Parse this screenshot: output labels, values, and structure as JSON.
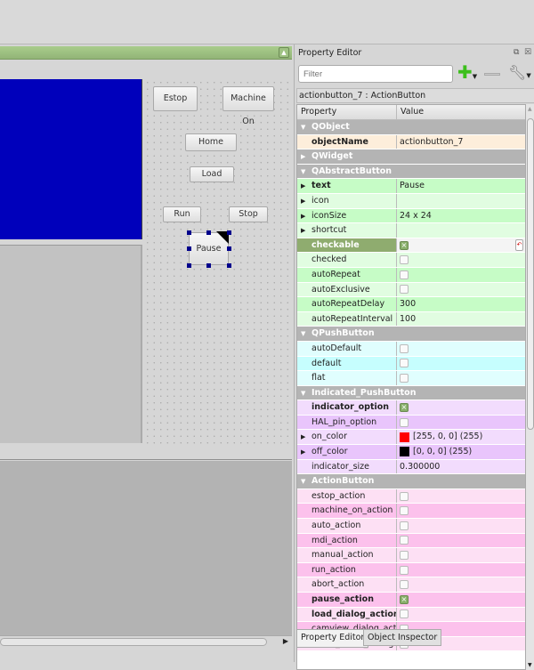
{
  "form": {
    "float_icon": "float-icon",
    "buttons": {
      "estop": "Estop",
      "machine_on": "Machine On",
      "home": "Home",
      "load": "Load",
      "run": "Run",
      "stop": "Stop",
      "pause": "Pause"
    }
  },
  "property_editor": {
    "title": "Property Editor",
    "filter_placeholder": "Filter",
    "object_label": "actionbutton_7 : ActionButton",
    "columns": [
      "Property",
      "Value"
    ],
    "rows": [
      {
        "type": "section",
        "label": "QObject",
        "open": true
      },
      {
        "label": "objectName",
        "value": "actionbutton_7",
        "bold": true,
        "bg": "#fdeedb"
      },
      {
        "type": "section",
        "label": "QWidget",
        "open": false
      },
      {
        "type": "section",
        "label": "QAbstractButton",
        "open": true
      },
      {
        "label": "text",
        "value": "Pause",
        "bold": true,
        "expand": true,
        "bg": "#c6fcc6"
      },
      {
        "label": "icon",
        "value": "",
        "expand": true,
        "bg": "#e1fde1"
      },
      {
        "label": "iconSize",
        "value": "24 x 24",
        "expand": true,
        "bg": "#c6fcc6"
      },
      {
        "label": "shortcut",
        "value": "",
        "expand": true,
        "bg": "#e1fde1"
      },
      {
        "label": "checkable",
        "check": true,
        "bold": true,
        "bg": "#8fac6f",
        "selected": true
      },
      {
        "label": "checked",
        "check": false,
        "bg": "#e1fde1"
      },
      {
        "label": "autoRepeat",
        "check": false,
        "bg": "#c6fcc6"
      },
      {
        "label": "autoExclusive",
        "check": false,
        "bg": "#e1fde1"
      },
      {
        "label": "autoRepeatDelay",
        "value": "300",
        "bg": "#c6fcc6"
      },
      {
        "label": "autoRepeatInterval",
        "value": "100",
        "bg": "#e1fde1"
      },
      {
        "type": "section",
        "label": "QPushButton",
        "open": true
      },
      {
        "label": "autoDefault",
        "check": false,
        "bg": "#e0fefe"
      },
      {
        "label": "default",
        "check": false,
        "bg": "#c6fefe"
      },
      {
        "label": "flat",
        "check": false,
        "bg": "#e0fefe"
      },
      {
        "type": "section",
        "label": "Indicated_PushButton",
        "open": true
      },
      {
        "label": "indicator_option",
        "check": true,
        "bold": true,
        "bg": "#f2dcfd"
      },
      {
        "label": "HAL_pin_option",
        "check": false,
        "bg": "#e9c5fc"
      },
      {
        "label": "on_color",
        "value": "[255, 0, 0] (255)",
        "swatch": "#ff0000",
        "expand": true,
        "bg": "#f2dcfd"
      },
      {
        "label": "off_color",
        "value": "[0, 0, 0] (255)",
        "swatch": "#000000",
        "expand": true,
        "bg": "#e9c5fc"
      },
      {
        "label": "indicator_size",
        "value": "0.300000",
        "bg": "#f2dcfd"
      },
      {
        "type": "section",
        "label": "ActionButton",
        "open": true
      },
      {
        "label": "estop_action",
        "check": false,
        "bg": "#fde0f4"
      },
      {
        "label": "machine_on_action",
        "check": false,
        "bg": "#fcc1ec"
      },
      {
        "label": "auto_action",
        "check": false,
        "bg": "#fde0f4"
      },
      {
        "label": "mdi_action",
        "check": false,
        "bg": "#fcc1ec"
      },
      {
        "label": "manual_action",
        "check": false,
        "bg": "#fde0f4"
      },
      {
        "label": "run_action",
        "check": false,
        "bg": "#fcc1ec"
      },
      {
        "label": "abort_action",
        "check": false,
        "bg": "#fde0f4"
      },
      {
        "label": "pause_action",
        "check": true,
        "bold": true,
        "bg": "#fcc1ec"
      },
      {
        "label": "load_dialog_action",
        "check": false,
        "bold": true,
        "bg": "#fde0f4"
      },
      {
        "label": "camview_dialog_acti...",
        "check": false,
        "bg": "#fcc1ec"
      },
      {
        "label": "origin_offset_dialog...",
        "check": false,
        "bg": "#fde0f4"
      }
    ],
    "tabs": [
      "Property Editor",
      "Object Inspector"
    ]
  }
}
